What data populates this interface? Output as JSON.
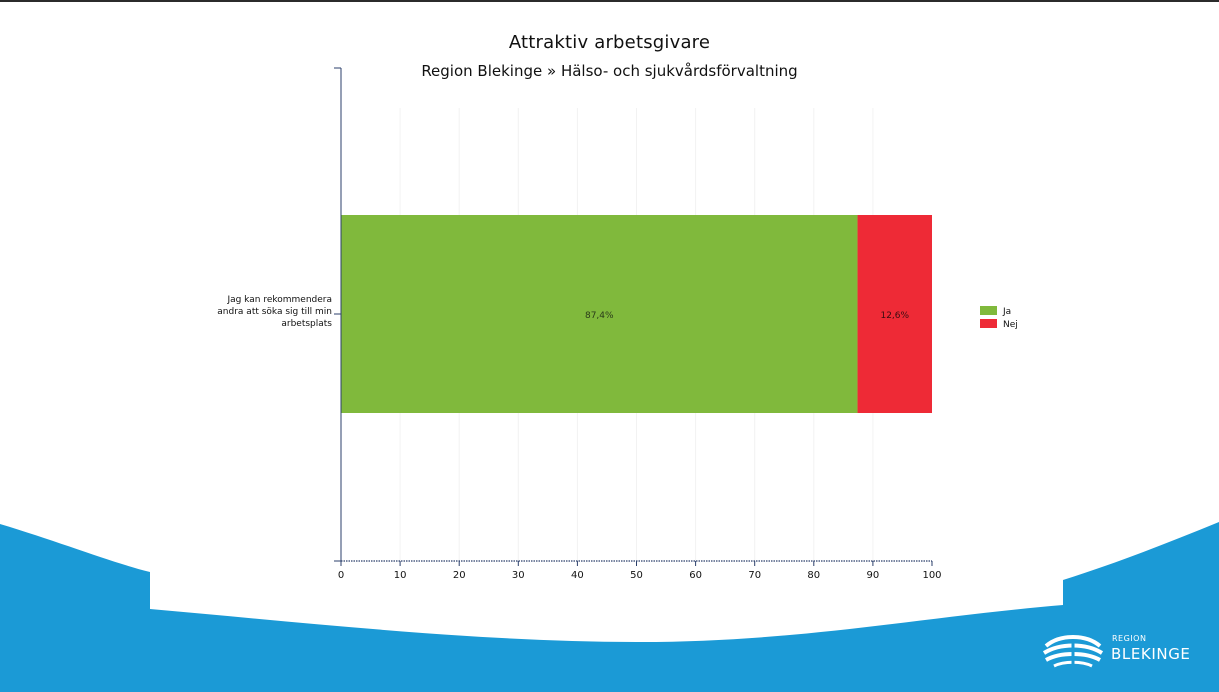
{
  "colors": {
    "background": "#ffffff",
    "wave": "#1b9ad6",
    "ja": "#80b93c",
    "nej": "#ee2a36",
    "axis": "#2b3f6b"
  },
  "logo": {
    "icon": "region-blekinge-wave-icon",
    "small_text": "REGION",
    "big_text": "BLEKINGE"
  },
  "chart_data": {
    "type": "bar",
    "orientation": "horizontal",
    "stacked": true,
    "title": "Attraktiv arbetsgivare",
    "subtitle": "Region Blekinge » Hälso- och sjukvårdsförvaltning",
    "categories": [
      "Jag kan rekommendera andra att söka sig till min arbetsplats"
    ],
    "category_label_lines": [
      "Jag kan rekommendera",
      "andra att söka sig till min",
      "arbetsplats"
    ],
    "series": [
      {
        "name": "Ja",
        "values": [
          87.4
        ],
        "labels": [
          "87,4%"
        ],
        "color": "#80b93c"
      },
      {
        "name": "Nej",
        "values": [
          12.6
        ],
        "labels": [
          "12,6%"
        ],
        "color": "#ee2a36"
      }
    ],
    "xlim": [
      0,
      100
    ],
    "xticks": [
      "0",
      "10",
      "20",
      "30",
      "40",
      "50",
      "60",
      "70",
      "80",
      "90",
      "100"
    ],
    "grid": false,
    "legend": "right"
  }
}
